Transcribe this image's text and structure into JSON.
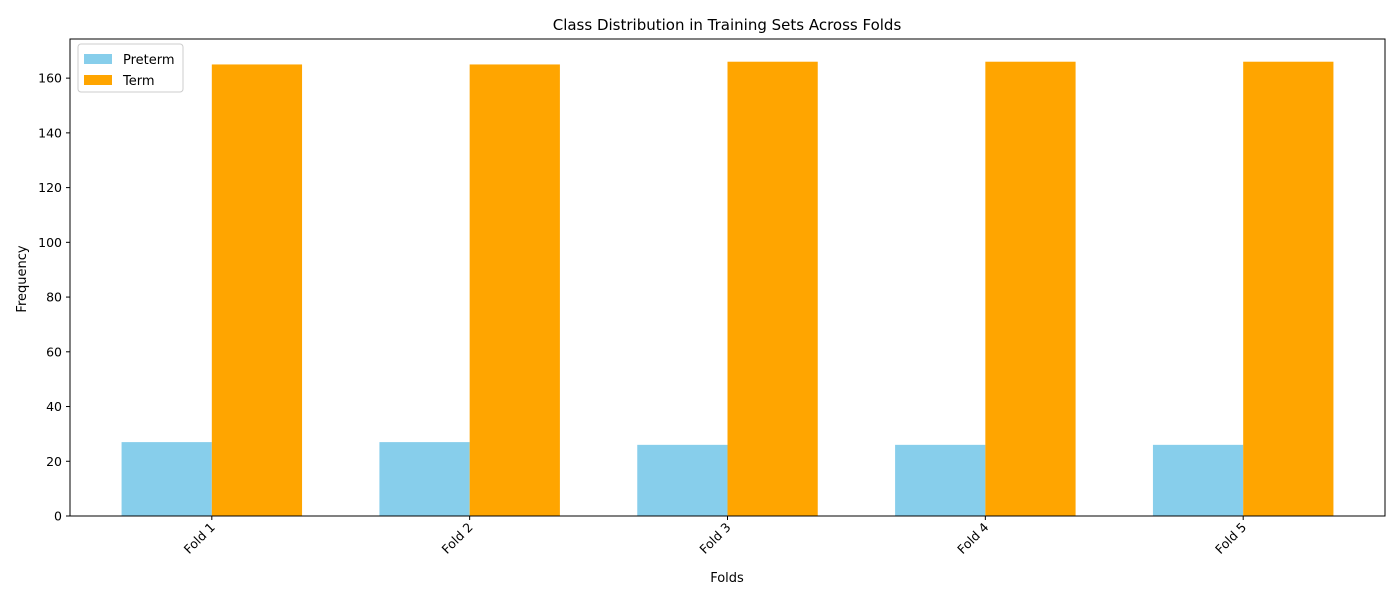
{
  "chart_data": {
    "type": "bar",
    "title": "Class Distribution in Training Sets Across Folds",
    "xlabel": "Folds",
    "ylabel": "Frequency",
    "categories": [
      "Fold 1",
      "Fold 2",
      "Fold 3",
      "Fold 4",
      "Fold 5"
    ],
    "series": [
      {
        "name": "Preterm",
        "color": "#87ceeb",
        "values": [
          27,
          27,
          26,
          26,
          26
        ]
      },
      {
        "name": "Term",
        "color": "#ffa500",
        "values": [
          165,
          165,
          166,
          166,
          166
        ]
      }
    ],
    "ylim": [
      0,
      174.3
    ],
    "yticks": [
      0,
      20,
      40,
      60,
      80,
      100,
      120,
      140,
      160
    ],
    "grid": false,
    "legend_position": "top-left",
    "x_tick_rotation": 45
  }
}
